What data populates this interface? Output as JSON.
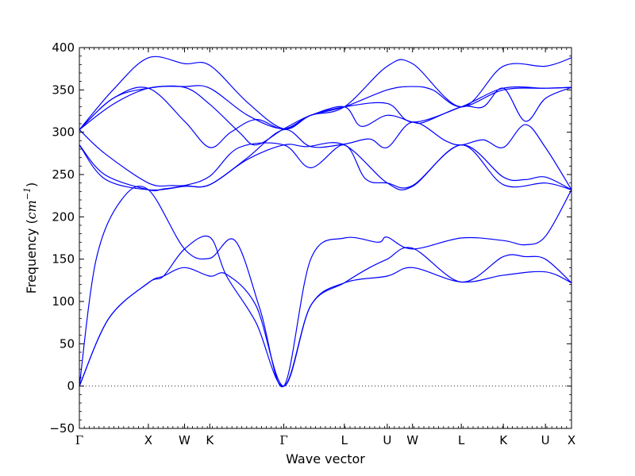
{
  "chart_data": {
    "type": "line",
    "xlabel": "Wave vector",
    "ylabel": {
      "text": "Frequency (",
      "unit_base": "cm",
      "unit_exponent": "−1",
      "close": ")"
    },
    "ylim": [
      -50,
      400
    ],
    "yticks": [
      -50,
      0,
      50,
      100,
      150,
      200,
      250,
      300,
      350,
      400
    ],
    "xlim": [
      0,
      5.85
    ],
    "xticks": [
      {
        "label": "Γ",
        "x": 0.0
      },
      {
        "label": "X",
        "x": 0.82
      },
      {
        "label": "W",
        "x": 1.25
      },
      {
        "label": "K",
        "x": 1.55
      },
      {
        "label": "Γ",
        "x": 2.43
      },
      {
        "label": "L",
        "x": 3.15
      },
      {
        "label": "U",
        "x": 3.66
      },
      {
        "label": "W",
        "x": 3.96
      },
      {
        "label": "L",
        "x": 4.54
      },
      {
        "label": "K",
        "x": 5.04
      },
      {
        "label": "U",
        "x": 5.54
      },
      {
        "label": "X",
        "x": 5.85
      }
    ],
    "zero_line": {
      "y": 0,
      "style": "dotted"
    },
    "line_color": "#0000ff",
    "series": [
      {
        "x": [
          0,
          0.35,
          0.82,
          1.0,
          1.25,
          1.55,
          1.75,
          2.1,
          2.43,
          2.75,
          3.15,
          3.66,
          3.96,
          4.54,
          5.04,
          5.54,
          5.85
        ],
        "y": [
          0,
          80,
          122,
          130,
          140,
          130,
          132,
          95,
          0,
          95,
          122,
          130,
          140,
          123,
          131,
          135,
          122
        ]
      },
      {
        "x": [
          0,
          0.35,
          0.82,
          1.0,
          1.25,
          1.55,
          1.75,
          2.1,
          2.43,
          2.75,
          3.15,
          3.45,
          3.66,
          3.96,
          4.54,
          5.04,
          5.3,
          5.54,
          5.85
        ],
        "y": [
          0,
          80,
          122,
          130,
          162,
          176,
          130,
          75,
          0,
          95,
          122,
          140,
          150,
          163,
          123,
          153,
          153,
          150,
          122
        ]
      },
      {
        "x": [
          0,
          0.2,
          0.5,
          0.82,
          1.25,
          1.55,
          1.85,
          2.15,
          2.43,
          2.75,
          3.15,
          3.55,
          3.66,
          3.96,
          4.54,
          5.04,
          5.3,
          5.54,
          5.85
        ],
        "y": [
          0,
          150,
          220,
          232,
          162,
          151,
          172,
          90,
          0,
          150,
          175,
          170,
          176,
          162,
          175,
          172,
          167,
          177,
          232
        ]
      },
      {
        "x": [
          0,
          0.3,
          0.82,
          1.25,
          1.55,
          2.0,
          2.43,
          2.7,
          3.15,
          3.66,
          3.96,
          4.54,
          5.04,
          5.54,
          5.85
        ],
        "y": [
          285,
          245,
          232,
          236,
          238,
          268,
          285,
          283,
          285,
          240,
          236,
          285,
          238,
          240,
          232
        ]
      },
      {
        "x": [
          0,
          0.3,
          0.82,
          1.0,
          1.25,
          1.55,
          1.9,
          2.43,
          2.75,
          3.15,
          3.4,
          3.66,
          3.96,
          4.54,
          5.04,
          5.3,
          5.54,
          5.85
        ],
        "y": [
          285,
          250,
          232,
          233,
          237,
          248,
          282,
          285,
          258,
          285,
          245,
          240,
          237,
          285,
          247,
          244,
          247,
          232
        ]
      },
      {
        "x": [
          0,
          0.3,
          0.82,
          1.1,
          1.25,
          1.55,
          2.0,
          2.43,
          2.75,
          3.15,
          3.45,
          3.66,
          3.96,
          4.35,
          4.54,
          4.8,
          5.04,
          5.3,
          5.54,
          5.85
        ],
        "y": [
          303,
          275,
          240,
          237,
          237,
          238,
          270,
          303,
          283,
          286,
          292,
          282,
          312,
          290,
          285,
          291,
          282,
          309,
          282,
          232
        ]
      },
      {
        "x": [
          0,
          0.4,
          0.82,
          1.25,
          1.55,
          1.8,
          2.1,
          2.43,
          2.75,
          3.15,
          3.66,
          3.96,
          4.54,
          5.04,
          5.54,
          5.85
        ],
        "y": [
          303,
          340,
          352,
          313,
          282,
          300,
          315,
          304,
          320,
          330,
          334,
          312,
          330,
          352,
          352,
          353
        ]
      },
      {
        "x": [
          0,
          0.4,
          0.82,
          1.25,
          1.55,
          1.9,
          2.1,
          2.43,
          2.75,
          3.15,
          3.66,
          3.96,
          4.2,
          4.54,
          5.04,
          5.54,
          5.85
        ],
        "y": [
          303,
          340,
          352,
          353,
          333,
          300,
          285,
          304,
          320,
          330,
          350,
          354,
          350,
          330,
          350,
          352,
          353
        ]
      },
      {
        "x": [
          0,
          0.4,
          0.82,
          1.25,
          1.55,
          2.0,
          2.43,
          2.75,
          3.15,
          3.35,
          3.66,
          3.96,
          4.1,
          4.54,
          4.8,
          5.04,
          5.3,
          5.54,
          5.85
        ],
        "y": [
          303,
          333,
          352,
          354,
          352,
          320,
          304,
          320,
          330,
          307,
          320,
          312,
          312,
          330,
          330,
          352,
          313,
          340,
          353
        ]
      },
      {
        "x": [
          0,
          0.4,
          0.82,
          1.25,
          1.55,
          2.0,
          2.43,
          2.75,
          3.15,
          3.66,
          3.96,
          4.54,
          5.04,
          5.54,
          5.85
        ],
        "y": [
          303,
          350,
          388,
          381,
          379,
          335,
          304,
          320,
          330,
          378,
          381,
          330,
          378,
          378,
          388
        ]
      }
    ]
  }
}
